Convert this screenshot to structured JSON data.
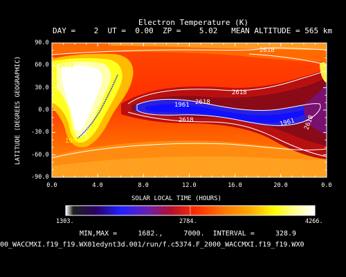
{
  "chart_data": {
    "type": "heatmap",
    "title": "Electron Temperature (K)",
    "subtitle": "DAY =    2  UT =  0.00  ZP =    5.02   MEAN ALTITUDE = 565 km",
    "xlabel": "SOLAR LOCAL TIME (HOURS)",
    "ylabel": "LATITUDE (DEGREES GEOGRAPHIC)",
    "xlim": [
      0,
      24
    ],
    "ylim": [
      -90,
      90
    ],
    "x_ticks": [
      "0.0",
      "4.0",
      "8.0",
      "12.0",
      "16.0",
      "20.0",
      "0.0"
    ],
    "y_ticks": [
      "90.0",
      "60.0",
      "30.0",
      "0.0",
      "-30.0",
      "-60.0",
      "-90.0"
    ],
    "colorbar": {
      "min_label": "1303.",
      "mid_label": "2784.",
      "max_label": "4266."
    },
    "stats_line": "MIN,MAX =     1682.,     7000.  INTERVAL =     328.9",
    "contour_labels": [
      "2618",
      "2618",
      "2618",
      "2618",
      "1961",
      "1961",
      "1961",
      "2618",
      "2618"
    ],
    "footer": "00_WACCMXI.f19_f19.WX01edynt3d.001/run/f.c5374.F_2000_WACCMXI.f19_f19.WX0",
    "colors": {
      "background": "#000000",
      "low": "#0000cc",
      "mid": "#ff2a00",
      "high": "#ffffff"
    }
  }
}
